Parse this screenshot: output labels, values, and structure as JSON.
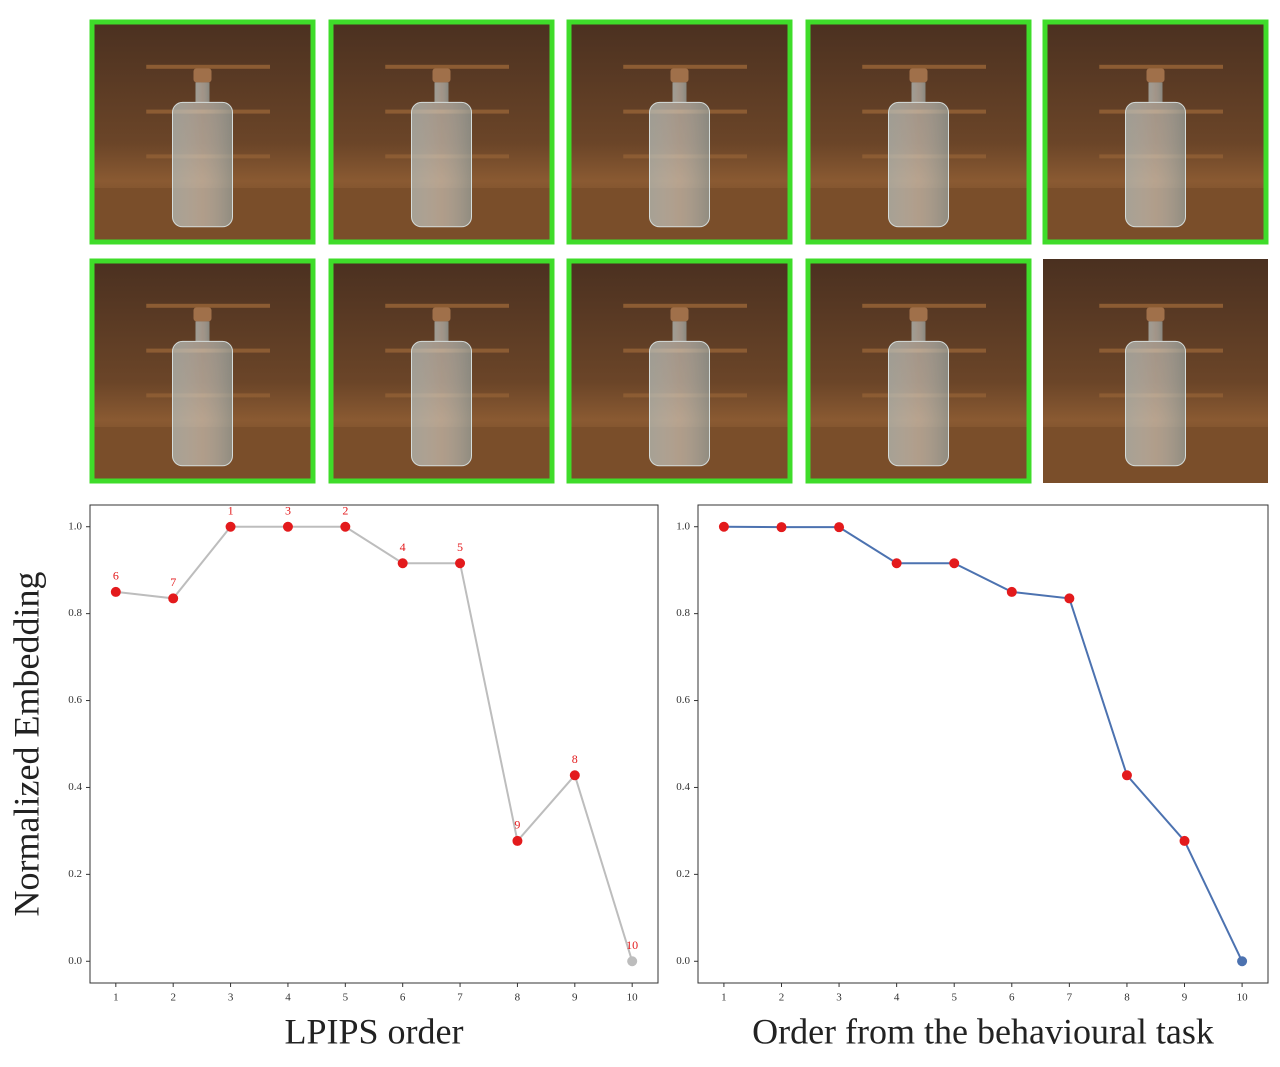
{
  "chart_data": [
    {
      "type": "line",
      "xlabel": "LPIPS order",
      "ylabel": "Normalized Embedding",
      "x": [
        1,
        2,
        3,
        4,
        5,
        6,
        7,
        8,
        9,
        10
      ],
      "series": [
        {
          "color": "#bdbdbd",
          "values": [
            0.85,
            0.835,
            1.0,
            1.0,
            1.0,
            0.916,
            0.916,
            0.277,
            0.428,
            0.0
          ],
          "marker_colors": [
            "#e31a1c",
            "#e31a1c",
            "#e31a1c",
            "#e31a1c",
            "#e31a1c",
            "#e31a1c",
            "#e31a1c",
            "#e31a1c",
            "#e31a1c",
            "#bdbdbd"
          ]
        }
      ],
      "point_labels": [
        "6",
        "7",
        "1",
        "3",
        "2",
        "4",
        "5",
        "9",
        "8",
        "10"
      ],
      "point_label_color": "#e31a1c",
      "xlim": [
        0.55,
        10.45
      ],
      "ylim": [
        -0.05,
        1.05
      ],
      "xticks": [
        1,
        2,
        3,
        4,
        5,
        6,
        7,
        8,
        9,
        10
      ],
      "yticks": [
        {
          "value": 0,
          "label": "0.0"
        },
        0.2,
        0.4,
        0.6,
        0.8,
        {
          "value": 1,
          "label": "1.0"
        }
      ],
      "grid": false
    },
    {
      "type": "line",
      "xlabel": "Order from the behavioural task",
      "x": [
        1,
        2,
        3,
        4,
        5,
        6,
        7,
        8,
        9,
        10
      ],
      "series": [
        {
          "color": "#4c72b0",
          "values": [
            1.0,
            0.999,
            0.999,
            0.916,
            0.916,
            0.85,
            0.835,
            0.428,
            0.277,
            0.0
          ],
          "marker_colors": [
            "#e31a1c",
            "#e31a1c",
            "#e31a1c",
            "#e31a1c",
            "#e31a1c",
            "#e31a1c",
            "#e31a1c",
            "#e31a1c",
            "#e31a1c",
            "#4c72b0"
          ]
        }
      ],
      "xlim": [
        0.55,
        10.45
      ],
      "ylim": [
        -0.05,
        1.05
      ],
      "xticks": [
        1,
        2,
        3,
        4,
        5,
        6,
        7,
        8,
        9,
        10
      ],
      "yticks": [
        {
          "value": 0,
          "label": "0.0"
        },
        0.2,
        0.4,
        0.6,
        0.8,
        {
          "value": 1,
          "label": "1.0"
        }
      ],
      "grid": false
    }
  ]
}
